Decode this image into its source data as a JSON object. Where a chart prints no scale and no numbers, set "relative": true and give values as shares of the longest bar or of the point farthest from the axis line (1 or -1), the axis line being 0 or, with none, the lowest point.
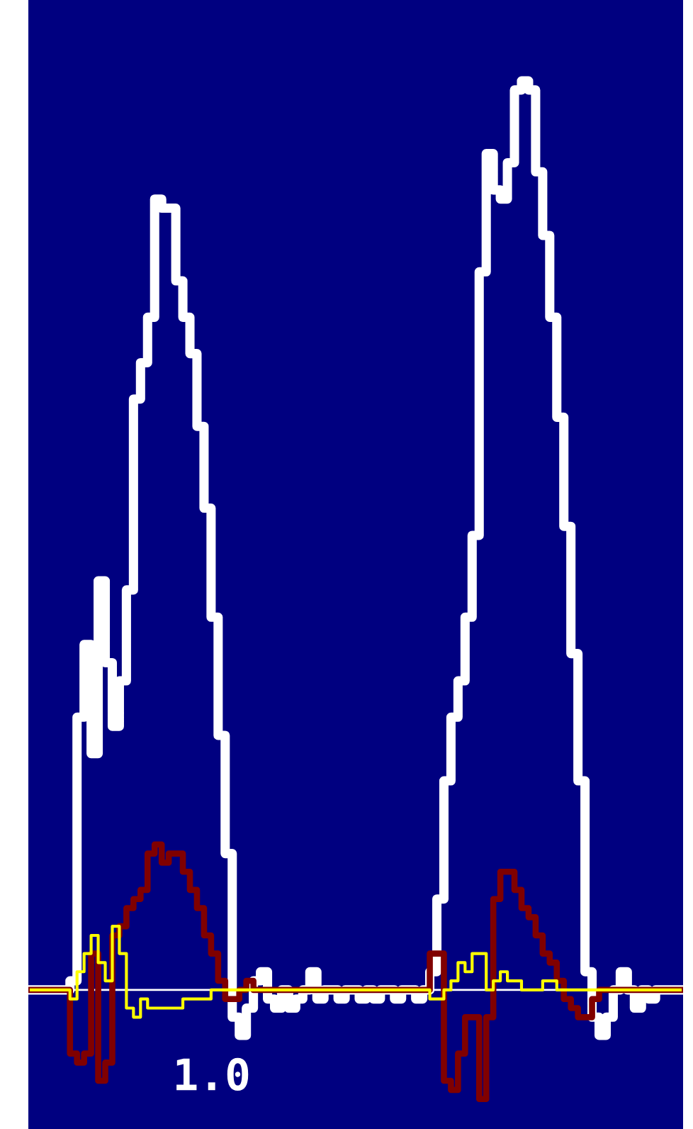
{
  "chart_data": {
    "type": "step",
    "relative": true,
    "categories": [
      null,
      null,
      null,
      null,
      null,
      null,
      null,
      null,
      null,
      null,
      null,
      null,
      null,
      null,
      null,
      null,
      null,
      null,
      null,
      null,
      null,
      null,
      null,
      null,
      null,
      null,
      null,
      null,
      null,
      null,
      null,
      null,
      null,
      null,
      null,
      null,
      null,
      null,
      null,
      null,
      null,
      null,
      null,
      null,
      null,
      null,
      null,
      null,
      null,
      null,
      null,
      null,
      null,
      null,
      null,
      null,
      null,
      null,
      null,
      null,
      null,
      null,
      null,
      null,
      null,
      null,
      null,
      null,
      null,
      null,
      null,
      null,
      null,
      null,
      null,
      null,
      null,
      null,
      null,
      null,
      null,
      null,
      null,
      null,
      null,
      null,
      null,
      null,
      null,
      null,
      null,
      null,
      null
    ],
    "series": [
      {
        "color": "#ffffff",
        "values": [
          0,
          0,
          0,
          0,
          0,
          0,
          0.01,
          0.3,
          0.38,
          0.26,
          0.45,
          0.36,
          0.29,
          0.34,
          0.44,
          0.65,
          0.69,
          0.74,
          0.87,
          0.86,
          0.86,
          0.78,
          0.74,
          0.7,
          0.62,
          0.53,
          0.41,
          0.28,
          0.15,
          -0.03,
          -0.05,
          -0.02,
          0.01,
          0.02,
          -0.01,
          -0.02,
          0,
          -0.02,
          -0.01,
          0,
          0.02,
          -0.01,
          0,
          0,
          -0.01,
          0,
          0,
          -0.01,
          0,
          -0.01,
          0,
          0,
          -0.01,
          0,
          0,
          -0.01,
          0,
          0.02,
          0.1,
          0.23,
          0.3,
          0.34,
          0.41,
          0.5,
          0.79,
          0.92,
          0.88,
          0.87,
          0.91,
          0.99,
          1,
          0.99,
          0.9,
          0.83,
          0.74,
          0.63,
          0.51,
          0.37,
          0.23,
          0.02,
          -0.03,
          -0.05,
          -0.03,
          0,
          0.02,
          0,
          -0.02,
          0,
          -0.01,
          0,
          0,
          0,
          0
        ]
      },
      {
        "color": "#800000",
        "values": [
          0,
          0,
          0,
          0,
          0,
          0,
          -0.07,
          -0.08,
          -0.07,
          0.04,
          -0.1,
          -0.08,
          0.06,
          0.07,
          0.09,
          0.1,
          0.11,
          0.15,
          0.16,
          0.14,
          0.15,
          0.15,
          0.13,
          0.11,
          0.09,
          0.06,
          0.04,
          0.01,
          -0.01,
          -0.01,
          0,
          0.01,
          0,
          0,
          0,
          0,
          0,
          0,
          0,
          0,
          0,
          0,
          0,
          0,
          0,
          0,
          0,
          0,
          0,
          0,
          0,
          0,
          0,
          0,
          0,
          0,
          0,
          0.04,
          0.04,
          -0.1,
          -0.11,
          -0.07,
          -0.03,
          -0.03,
          -0.12,
          -0.03,
          0.1,
          0.13,
          0.13,
          0.11,
          0.09,
          0.08,
          0.06,
          0.04,
          0.03,
          0.01,
          -0.01,
          -0.02,
          -0.03,
          -0.03,
          -0.01,
          0,
          0,
          0,
          0,
          0,
          0,
          0,
          0,
          0,
          0,
          0,
          0
        ]
      },
      {
        "color": "#ffff00",
        "values": [
          0,
          0,
          0,
          0,
          0,
          0,
          -0.01,
          0.02,
          0.04,
          0.06,
          0.03,
          0.01,
          0.07,
          0.04,
          -0.02,
          -0.03,
          -0.01,
          -0.02,
          -0.02,
          -0.02,
          -0.02,
          -0.02,
          -0.01,
          -0.01,
          -0.01,
          -0.01,
          0,
          0,
          0,
          0,
          0,
          0,
          0,
          0,
          0,
          0,
          0,
          0,
          0,
          0,
          0,
          0,
          0,
          0,
          0,
          0,
          0,
          0,
          0,
          0,
          0,
          0,
          0,
          0,
          0,
          0,
          0,
          -0.01,
          -0.01,
          0,
          0.01,
          0.03,
          0.02,
          0.04,
          0.04,
          0,
          0.01,
          0.02,
          0.01,
          0.01,
          0,
          0,
          0,
          0.01,
          0.01,
          0,
          0,
          0,
          0,
          0,
          0,
          0,
          0,
          0,
          0,
          0,
          0,
          0,
          0,
          0,
          0,
          0,
          0
        ]
      }
    ],
    "annotations": [
      "1.0"
    ]
  }
}
